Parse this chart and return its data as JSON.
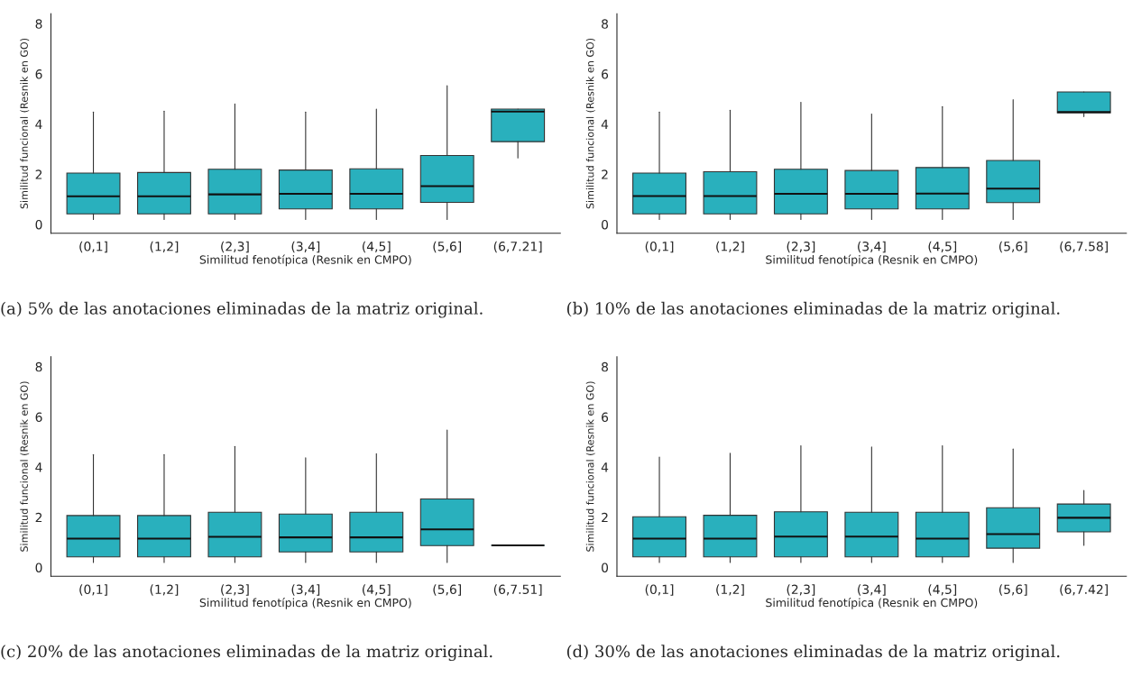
{
  "chart_data": [
    {
      "type": "box",
      "xlabel": "Similitud fenotípica (Resnik en CMPO)",
      "ylabel": "Similitud funcional (Resnik en GO)",
      "categories": [
        "(0,1]",
        "(1,2]",
        "(2,3]",
        "(3,4]",
        "(4,5]",
        "(5,6]",
        "(6,7.21]"
      ],
      "ylim": [
        -0.35,
        8.4
      ],
      "yticks": [
        0,
        2,
        4,
        6,
        8
      ],
      "grid": false,
      "legend": false,
      "series": [
        {
          "color": "#29b0bd",
          "boxes": [
            {
              "low": 0.2,
              "q1": 0.42,
              "median": 1.12,
              "q3": 2.05,
              "high": 4.48
            },
            {
              "low": 0.2,
              "q1": 0.42,
              "median": 1.12,
              "q3": 2.07,
              "high": 4.52
            },
            {
              "low": 0.2,
              "q1": 0.42,
              "median": 1.2,
              "q3": 2.2,
              "high": 4.8
            },
            {
              "low": 0.2,
              "q1": 0.62,
              "median": 1.22,
              "q3": 2.17,
              "high": 4.48
            },
            {
              "low": 0.2,
              "q1": 0.62,
              "median": 1.22,
              "q3": 2.22,
              "high": 4.6
            },
            {
              "low": 0.2,
              "q1": 0.88,
              "median": 1.53,
              "q3": 2.75,
              "high": 5.53
            },
            {
              "low": 2.65,
              "q1": 3.3,
              "median": 4.5,
              "q3": 4.6,
              "high": 4.6
            }
          ]
        }
      ],
      "annotations": [
        "(a) 5% de las anotaciones eliminadas de la matriz original."
      ]
    },
    {
      "type": "box",
      "xlabel": "Similitud fenotípica (Resnik en CMPO)",
      "ylabel": "Similitud funcional (Resnik en GO)",
      "categories": [
        "(0,1]",
        "(1,2]",
        "(2,3]",
        "(3,4]",
        "(4,5]",
        "(5,6]",
        "(6,7.58]"
      ],
      "ylim": [
        -0.35,
        8.4
      ],
      "yticks": [
        0,
        2,
        4,
        6,
        8
      ],
      "grid": false,
      "legend": false,
      "series": [
        {
          "color": "#29b0bd",
          "boxes": [
            {
              "low": 0.2,
              "q1": 0.42,
              "median": 1.13,
              "q3": 2.05,
              "high": 4.48
            },
            {
              "low": 0.2,
              "q1": 0.42,
              "median": 1.13,
              "q3": 2.1,
              "high": 4.55
            },
            {
              "low": 0.2,
              "q1": 0.42,
              "median": 1.22,
              "q3": 2.2,
              "high": 4.87
            },
            {
              "low": 0.2,
              "q1": 0.62,
              "median": 1.22,
              "q3": 2.15,
              "high": 4.4
            },
            {
              "low": 0.2,
              "q1": 0.62,
              "median": 1.23,
              "q3": 2.27,
              "high": 4.7
            },
            {
              "low": 0.2,
              "q1": 0.87,
              "median": 1.43,
              "q3": 2.55,
              "high": 4.97
            },
            {
              "low": 4.3,
              "q1": 4.45,
              "median": 4.48,
              "q3": 5.28,
              "high": 5.28
            }
          ]
        }
      ],
      "annotations": [
        "(b) 10% de las anotaciones eliminadas de la matriz original."
      ]
    },
    {
      "type": "box",
      "xlabel": "Similitud fenotípica (Resnik en CMPO)",
      "ylabel": "Similitud funcional (Resnik en GO)",
      "categories": [
        "(0,1]",
        "(1,2]",
        "(2,3]",
        "(3,4]",
        "(4,5]",
        "(5,6]",
        "(6,7.51]"
      ],
      "ylim": [
        -0.35,
        8.4
      ],
      "yticks": [
        0,
        2,
        4,
        6,
        8
      ],
      "grid": false,
      "legend": false,
      "series": [
        {
          "color": "#29b0bd",
          "boxes": [
            {
              "low": 0.2,
              "q1": 0.42,
              "median": 1.15,
              "q3": 2.07,
              "high": 4.5
            },
            {
              "low": 0.2,
              "q1": 0.42,
              "median": 1.15,
              "q3": 2.07,
              "high": 4.5
            },
            {
              "low": 0.2,
              "q1": 0.42,
              "median": 1.22,
              "q3": 2.2,
              "high": 4.82
            },
            {
              "low": 0.2,
              "q1": 0.62,
              "median": 1.2,
              "q3": 2.13,
              "high": 4.37
            },
            {
              "low": 0.2,
              "q1": 0.62,
              "median": 1.2,
              "q3": 2.2,
              "high": 4.53
            },
            {
              "low": 0.2,
              "q1": 0.87,
              "median": 1.52,
              "q3": 2.73,
              "high": 5.48
            },
            {
              "low": 0.88,
              "q1": 0.88,
              "median": 0.88,
              "q3": 0.88,
              "high": 0.88
            }
          ]
        }
      ],
      "annotations": [
        "(c) 20% de las anotaciones eliminadas de la matriz original."
      ]
    },
    {
      "type": "box",
      "xlabel": "Similitud fenotípica (Resnik en CMPO)",
      "ylabel": "Similitud funcional (Resnik en GO)",
      "categories": [
        "(0,1]",
        "(1,2]",
        "(2,3]",
        "(3,4]",
        "(4,5]",
        "(5,6]",
        "(6,7.42]"
      ],
      "ylim": [
        -0.35,
        8.4
      ],
      "yticks": [
        0,
        2,
        4,
        6,
        8
      ],
      "grid": false,
      "legend": false,
      "series": [
        {
          "color": "#29b0bd",
          "boxes": [
            {
              "low": 0.2,
              "q1": 0.42,
              "median": 1.15,
              "q3": 2.02,
              "high": 4.4
            },
            {
              "low": 0.2,
              "q1": 0.42,
              "median": 1.15,
              "q3": 2.08,
              "high": 4.55
            },
            {
              "low": 0.2,
              "q1": 0.42,
              "median": 1.23,
              "q3": 2.22,
              "high": 4.85
            },
            {
              "low": 0.2,
              "q1": 0.42,
              "median": 1.23,
              "q3": 2.2,
              "high": 4.8
            },
            {
              "low": 0.2,
              "q1": 0.42,
              "median": 1.15,
              "q3": 2.2,
              "high": 4.85
            },
            {
              "low": 0.2,
              "q1": 0.77,
              "median": 1.33,
              "q3": 2.38,
              "high": 4.72
            },
            {
              "low": 0.88,
              "q1": 1.42,
              "median": 1.98,
              "q3": 2.53,
              "high": 3.07
            }
          ]
        }
      ],
      "annotations": [
        "(d) 30% de las anotaciones eliminadas de la matriz original."
      ]
    }
  ]
}
